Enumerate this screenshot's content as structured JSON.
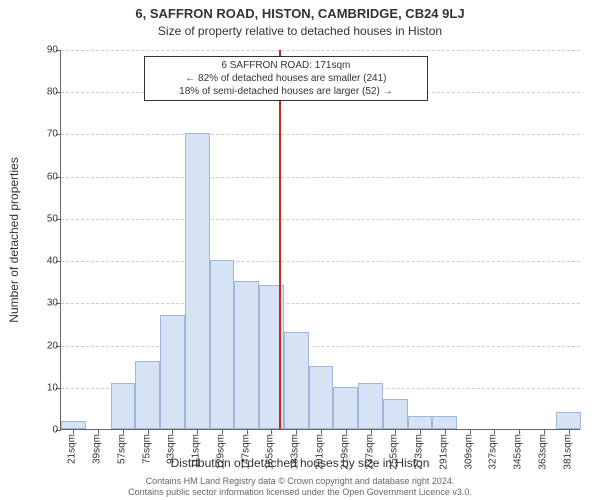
{
  "chart": {
    "type": "histogram",
    "title_line1": "6, SAFFRON ROAD, HISTON, CAMBRIDGE, CB24 9LJ",
    "title_line2": "Size of property relative to detached houses in Histon",
    "ylabel": "Number of detached properties",
    "xlabel": "Distribution of detached houses by size in Histon",
    "ylim": [
      0,
      90
    ],
    "ytick_step": 10,
    "grid_color": "#cccccc",
    "background_color": "#ffffff",
    "axis_color": "#666666",
    "bar_fill": "#d6e3f4",
    "bar_border": "#9db7dd",
    "marker_color": "#c62828",
    "x_categories": [
      "21sqm",
      "39sqm",
      "57sqm",
      "75sqm",
      "93sqm",
      "111sqm",
      "129sqm",
      "147sqm",
      "165sqm",
      "183sqm",
      "201sqm",
      "219sqm",
      "237sqm",
      "255sqm",
      "273sqm",
      "291sqm",
      "309sqm",
      "327sqm",
      "345sqm",
      "363sqm",
      "381sqm"
    ],
    "values": [
      2,
      0,
      11,
      16,
      27,
      70,
      40,
      35,
      34,
      23,
      15,
      10,
      11,
      7,
      3,
      3,
      0,
      0,
      0,
      0,
      4
    ],
    "marker_x_index": 8.3,
    "annotation": {
      "line1": "6 SAFFRON ROAD: 171sqm",
      "line2": "← 82% of detached houses are smaller (241)",
      "line3": "18% of semi-detached houses are larger (52) →"
    },
    "footer_line1": "Contains HM Land Registry data © Crown copyright and database right 2024.",
    "footer_line2": "Contains public sector information licensed under the Open Government Licence v3.0.",
    "title_fontsize": 13,
    "subtitle_fontsize": 12,
    "label_fontsize": 12,
    "tick_fontsize": 10,
    "annotation_fontsize": 10,
    "footer_fontsize": 9
  }
}
